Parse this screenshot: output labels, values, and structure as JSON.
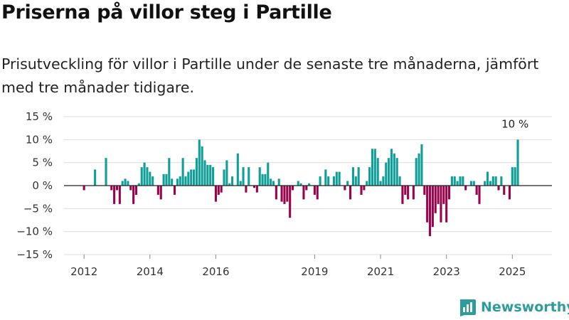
{
  "title": "Priserna på villor steg i Partille",
  "subtitle": "Prisutveckling för villor i Partille under de senaste tre månaderna, jämfört med tre månader tidigare.",
  "brand": "Newsworthy",
  "colors": {
    "positive": "#109e98",
    "negative": "#98054c",
    "grid": "#dddddd",
    "axis": "#222222",
    "brand": "#2e9c9c"
  },
  "chart_data": {
    "type": "bar",
    "title": "",
    "xlabel": "",
    "ylabel": "",
    "ylim": [
      -15,
      15
    ],
    "y_ticks": [
      15,
      10,
      5,
      0,
      -5,
      -10,
      -15
    ],
    "y_tick_labels": [
      "15 %",
      "10 %",
      "5 %",
      "0 %",
      "−5 %",
      "−10 %",
      "−15 %"
    ],
    "x_ticks": [
      {
        "label": "2012",
        "index": 6
      },
      {
        "label": "2014",
        "index": 30
      },
      {
        "label": "2016",
        "index": 54
      },
      {
        "label": "2019",
        "index": 90
      },
      {
        "label": "2021",
        "index": 114
      },
      {
        "label": "2023",
        "index": 138
      },
      {
        "label": "2025",
        "index": 162
      }
    ],
    "grid": true,
    "annotations": [
      {
        "text": "10 %",
        "index": 163,
        "value": 10
      }
    ],
    "start_month": "2011-07",
    "values": [
      0,
      0,
      0,
      0,
      0,
      0,
      -1,
      0,
      0,
      0,
      3.5,
      0,
      0,
      0,
      6,
      0,
      -1,
      -4,
      -1,
      -4,
      1,
      1.5,
      1,
      -1,
      -4,
      -2,
      0.5,
      4,
      5,
      4,
      3,
      2,
      0,
      -2,
      -3,
      2.5,
      2.5,
      6,
      1.5,
      -2,
      1.5,
      2,
      6,
      2,
      3,
      3.5,
      3.5,
      6,
      10,
      8.5,
      5.5,
      4.5,
      4.5,
      4,
      -3.5,
      -2,
      -1.5,
      3.5,
      5.5,
      0.5,
      2,
      0,
      7,
      1,
      4,
      -1.5,
      4,
      0,
      -0.5,
      -1.5,
      4,
      2.5,
      2.5,
      5,
      1.5,
      1,
      -3,
      1.5,
      -3.5,
      -4,
      -3.5,
      -7,
      -1,
      0,
      1,
      0.5,
      -3,
      -1,
      0.5,
      0,
      -2,
      -3,
      2,
      0,
      3.5,
      2,
      0,
      2,
      3,
      3,
      0,
      -1,
      1,
      -3,
      4,
      2,
      4,
      -2,
      -1,
      1,
      4,
      8,
      8,
      6,
      1,
      2,
      5,
      6,
      8,
      7,
      6,
      2,
      -4,
      -2,
      -3,
      0,
      -3,
      6,
      7,
      9,
      -2,
      -8,
      -11,
      -9,
      -6,
      -4,
      -8,
      -4,
      -8,
      -3,
      2,
      2,
      1,
      2,
      2,
      -1,
      0,
      1,
      1,
      -2,
      -4,
      0,
      1,
      3,
      1,
      2,
      2,
      -1,
      2,
      -2,
      0,
      -3,
      4,
      4,
      10
    ]
  }
}
